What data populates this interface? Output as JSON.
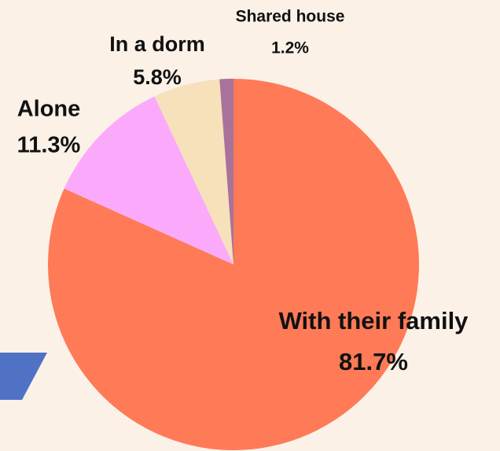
{
  "chart_data": {
    "type": "pie",
    "categories": [
      "With their family",
      "Alone",
      "In a dorm",
      "Shared house"
    ],
    "values": [
      81.7,
      11.3,
      5.8,
      1.2
    ],
    "value_labels": [
      "81.7%",
      "11.3%",
      "5.8%",
      "1.2%"
    ],
    "colors": [
      "#ff7a57",
      "#fbaafb",
      "#f6e1ba",
      "#a9729b"
    ]
  }
}
